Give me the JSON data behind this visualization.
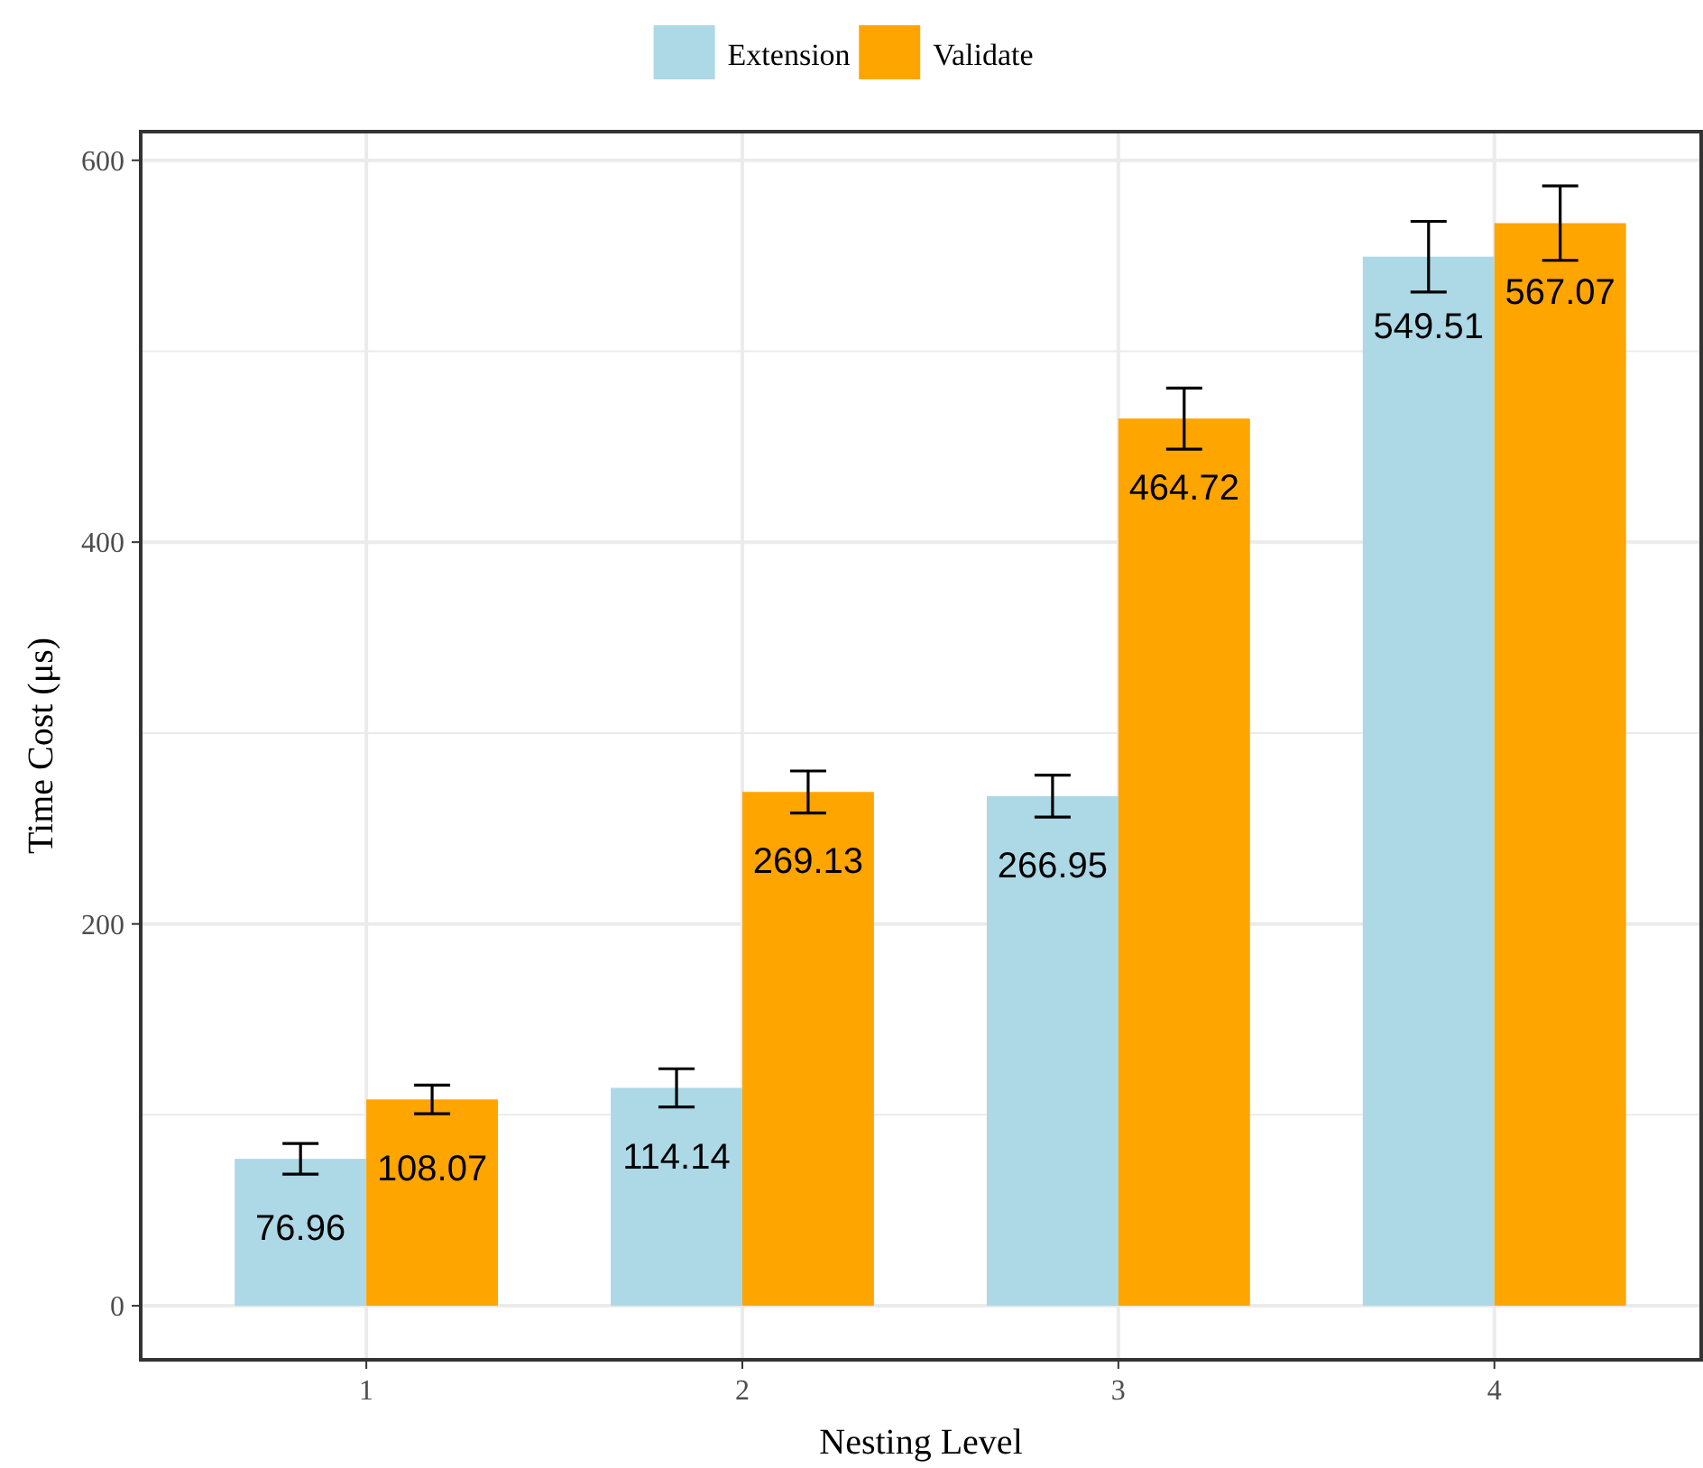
{
  "chart_data": {
    "type": "bar",
    "xlabel": "Nesting Level",
    "ylabel": "Time Cost (μs)",
    "categories": [
      "1",
      "2",
      "3",
      "4"
    ],
    "series": [
      {
        "name": "Extension",
        "color": "#add8e6",
        "values": [
          76.96,
          114.14,
          266.95,
          549.51
        ],
        "errors": [
          8,
          10,
          11,
          18.5
        ]
      },
      {
        "name": "Validate",
        "color": "#ffa500",
        "values": [
          108.07,
          269.13,
          464.72,
          567.07
        ],
        "errors": [
          7.5,
          11,
          16,
          19.5
        ]
      }
    ],
    "ylim": [
      -28.3,
      615
    ],
    "yticks": [
      0,
      {
        "value": 100,
        "label": null
      },
      200,
      {
        "value": 300,
        "label": null
      },
      400,
      {
        "value": 500,
        "label": null
      },
      600
    ],
    "grid": true,
    "legend": "top",
    "data_labels": true
  }
}
